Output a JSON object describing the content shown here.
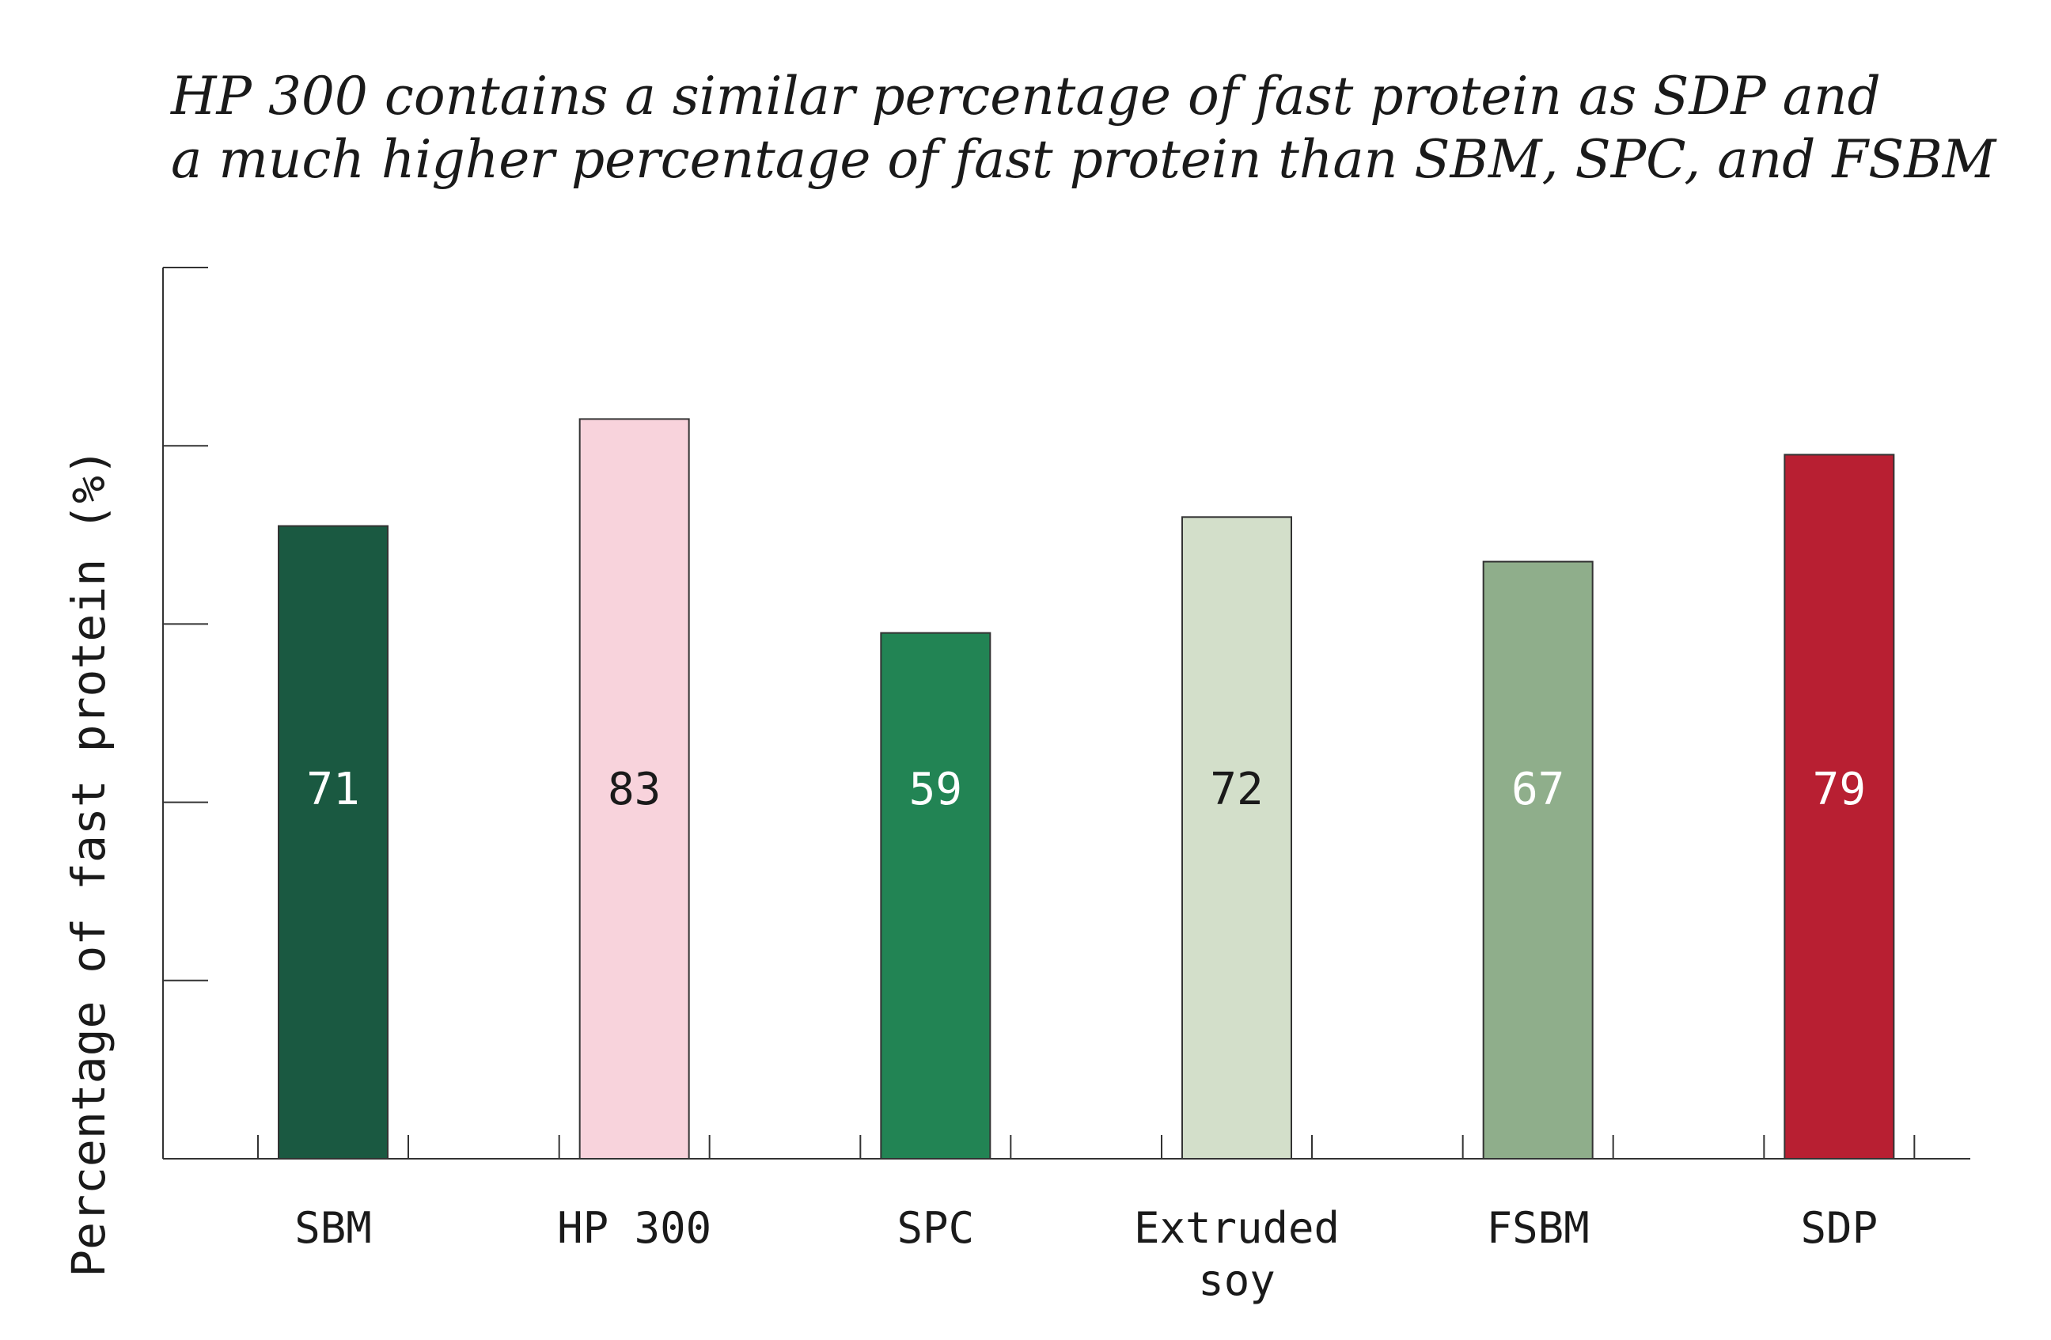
{
  "chart_data": {
    "type": "bar",
    "title_lines": [
      "HP 300 contains a similar percentage of fast protein as SDP and",
      "a much higher percentage of fast protein than SBM, SPC, and FSBM"
    ],
    "xlabel": "",
    "ylabel": "Percentage of fast protein (%)",
    "ylim": [
      0,
      100
    ],
    "y_tick_values": [
      20,
      40,
      60,
      80,
      100
    ],
    "grid": false,
    "legend": "none",
    "categories": [
      [
        "SBM"
      ],
      [
        "HP 300"
      ],
      [
        "SPC"
      ],
      [
        "Extruded",
        "soy"
      ],
      [
        "FSBM"
      ],
      [
        "SDP"
      ]
    ],
    "values": [
      71,
      83,
      59,
      72,
      67,
      79
    ],
    "data_labels": [
      "71",
      "83",
      "59",
      "72",
      "67",
      "79"
    ],
    "bar_colors": [
      "#1a5941",
      "#f8d3dc",
      "#228454",
      "#d3dfca",
      "#8fae8b",
      "#b81f32"
    ],
    "label_colors": [
      "#ffffff",
      "#1a1a1a",
      "#ffffff",
      "#1a1a1a",
      "#ffffff",
      "#ffffff"
    ],
    "axis_color": "#333333",
    "text_color": "#1a1a1a"
  }
}
